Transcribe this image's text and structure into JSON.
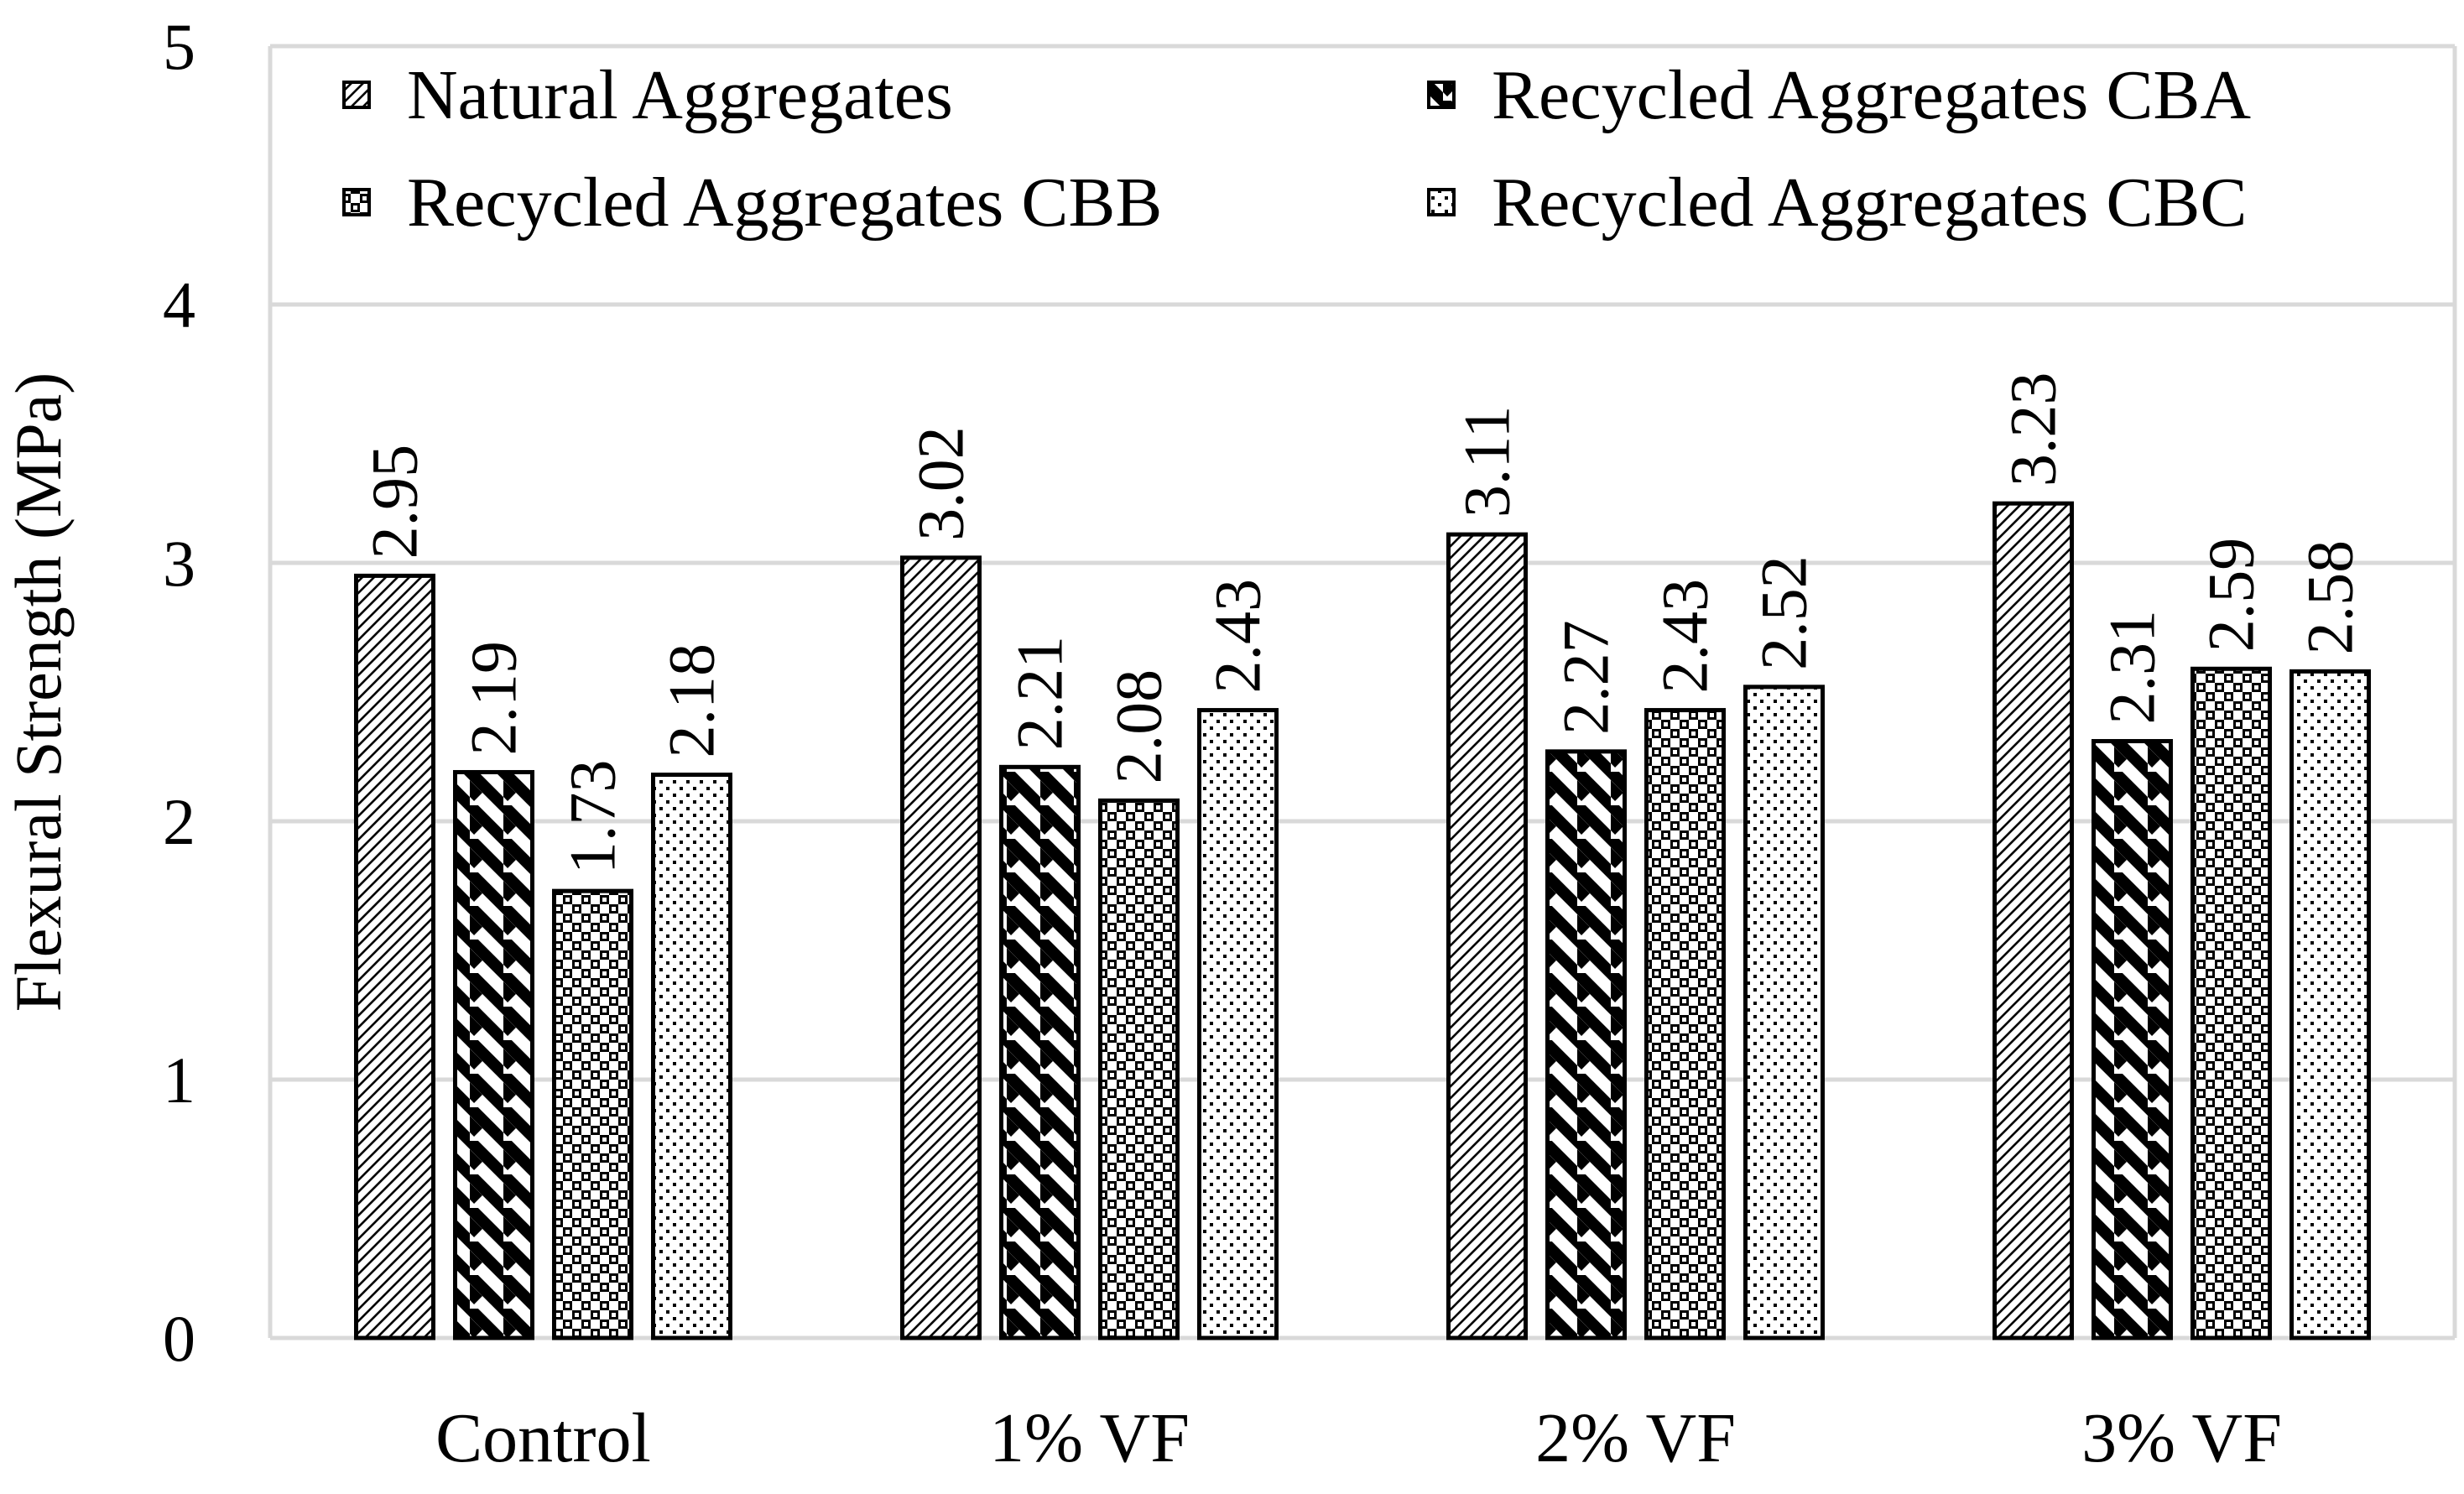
{
  "chart_data": {
    "type": "bar",
    "title": "",
    "xlabel": "",
    "ylabel": "Flexural Strength (MPa)",
    "ylim": [
      0,
      5
    ],
    "yticks": [
      "0",
      "1",
      "2",
      "3",
      "4",
      "5"
    ],
    "grid": true,
    "legend_position": "top",
    "categories": [
      "Control",
      "1% VF",
      "2% VF",
      "3% VF"
    ],
    "series": [
      {
        "name": "Natural Aggregates",
        "pattern": "fine-diagonal",
        "values": [
          2.95,
          3.02,
          3.11,
          3.23
        ],
        "labels": [
          "2.95",
          "3.02",
          "3.11",
          "3.23"
        ]
      },
      {
        "name": "Recycled Aggregates CBA",
        "pattern": "bold-diagonal",
        "values": [
          2.19,
          2.21,
          2.27,
          2.31
        ],
        "labels": [
          "2.19",
          "2.21",
          "2.27",
          "2.31"
        ]
      },
      {
        "name": "Recycled Aggregates CBB",
        "pattern": "checker-dots",
        "values": [
          1.73,
          2.08,
          2.43,
          2.59
        ],
        "labels": [
          "1.73",
          "2.08",
          "2.43",
          "2.59"
        ]
      },
      {
        "name": "Recycled Aggregates CBC",
        "pattern": "sparse-dots",
        "values": [
          2.18,
          2.43,
          2.52,
          2.58
        ],
        "labels": [
          "2.18",
          "2.43",
          "2.52",
          "2.58"
        ]
      }
    ],
    "colors": {
      "bar_stroke": "#000000",
      "gridline": "#d9d9d9",
      "axis": "#d9d9d9",
      "background": "#ffffff"
    }
  }
}
